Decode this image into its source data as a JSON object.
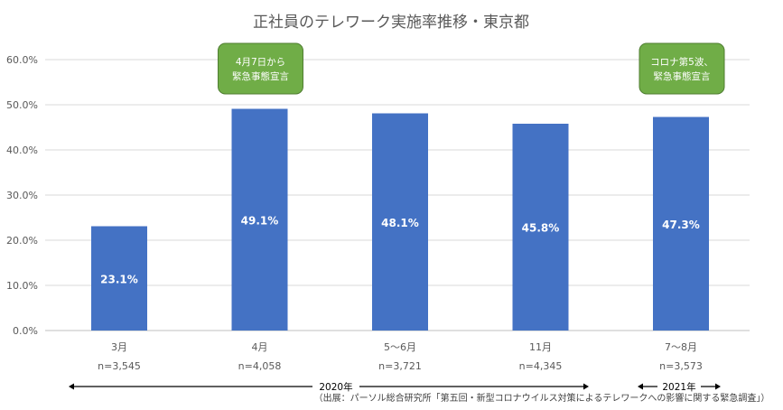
{
  "chart_data": {
    "type": "bar",
    "title": "正社員のテレワーク実施率推移・東京都",
    "categories": [
      "3月",
      "4月",
      "5〜6月",
      "11月",
      "7〜8月"
    ],
    "sample_sizes": [
      "n=3,545",
      "n=4,058",
      "n=3,721",
      "n=4,345",
      "n=3,573"
    ],
    "values": [
      23.1,
      49.1,
      48.1,
      45.8,
      47.3
    ],
    "value_labels": [
      "23.1%",
      "49.1%",
      "48.1%",
      "45.8%",
      "47.3%"
    ],
    "ylim": [
      0,
      60
    ],
    "yticks": [
      0,
      10,
      20,
      30,
      40,
      50,
      60
    ],
    "ytick_labels": [
      "0.0%",
      "10.0%",
      "20.0%",
      "30.0%",
      "40.0%",
      "50.0%",
      "60.0%"
    ],
    "grid": true,
    "bar_color": "#4472C4",
    "callouts": [
      {
        "lines": [
          "4月7日から",
          "緊急事態宣言"
        ],
        "category_index": 1
      },
      {
        "lines": [
          "コロナ第5波、",
          "緊急事態宣言"
        ],
        "category_index": 4
      }
    ],
    "callout_color": "#70AD47",
    "year_spans": [
      {
        "label": "2020年",
        "from_index": 0,
        "to_index": 3
      },
      {
        "label": "2021年",
        "from_index": 4,
        "to_index": 4
      }
    ],
    "source": "（出展：パーソル総合研究所「第五回・新型コロナウイルス対策によるテレワークへの影響に関する緊急調査」）"
  }
}
